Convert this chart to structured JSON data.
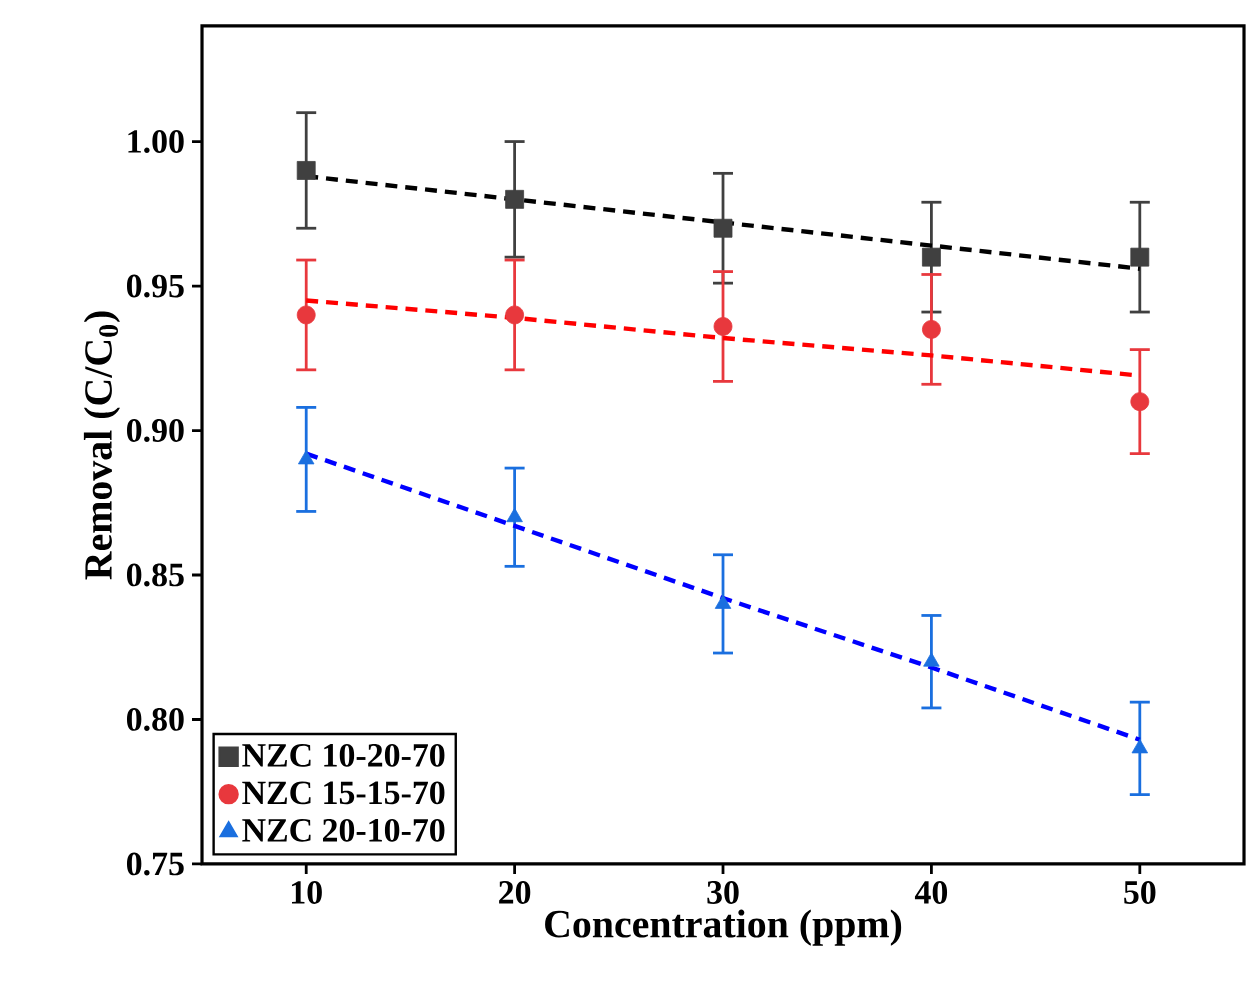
{
  "chart_data": {
    "type": "scatter",
    "xlabel": "Concentration (ppm)",
    "ylabel": "Removal (C/C$_{0}$)",
    "x": [
      10,
      20,
      30,
      40,
      50
    ],
    "xlim": [
      5,
      55
    ],
    "xticks": [
      10,
      20,
      30,
      40,
      50
    ],
    "ylim": [
      0.75,
      1.04
    ],
    "yticks": [
      0.75,
      {
        "value": 0.8,
        "label": "0.80"
      },
      0.85,
      {
        "value": 0.9,
        "label": "0.90"
      },
      0.95,
      {
        "value": 1.0,
        "label": "1.00"
      }
    ],
    "grid": false,
    "legend": "bottom left",
    "series": [
      {
        "name": "NZC 10-20-70",
        "color": "#404040",
        "marker": "square",
        "values": [
          0.99,
          0.98,
          0.97,
          0.96,
          0.96
        ],
        "errors": [
          0.02,
          0.02,
          0.019,
          0.019,
          0.019
        ]
      },
      {
        "name": "NZC 15-15-70",
        "color": "#e8383d",
        "marker": "circle",
        "values": [
          0.94,
          0.94,
          0.936,
          0.935,
          0.91
        ],
        "errors": [
          0.019,
          0.019,
          0.019,
          0.019,
          0.018
        ]
      },
      {
        "name": "NZC 20-10-70",
        "color": "#1a6fdf",
        "marker": "triangle",
        "values": [
          0.89,
          0.87,
          0.84,
          0.82,
          0.79
        ],
        "errors": [
          0.018,
          0.017,
          0.017,
          0.016,
          0.016
        ]
      },
      {
        "type": "line",
        "line_style": "dashed",
        "color": "#000000",
        "values": [
          0.988,
          0.98,
          0.972,
          0.964,
          0.956
        ]
      },
      {
        "type": "line",
        "line_style": "dashed",
        "color": "#ff0000",
        "values": [
          0.945,
          0.939,
          0.932,
          0.926,
          0.919
        ]
      },
      {
        "type": "line",
        "line_style": "dashed",
        "color": "#0000ff",
        "values": [
          0.892,
          0.867,
          0.842,
          0.818,
          0.793
        ]
      }
    ]
  }
}
